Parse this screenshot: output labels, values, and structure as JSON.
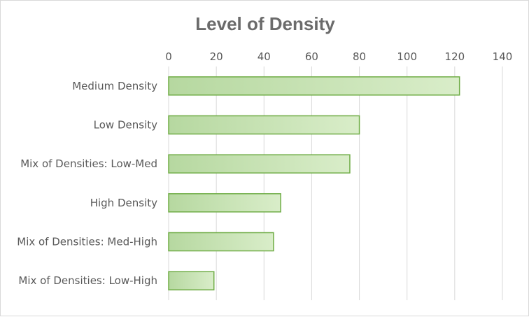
{
  "chart_data": {
    "type": "bar",
    "orientation": "horizontal",
    "title": "Level of Density",
    "xlabel": "",
    "ylabel": "",
    "categories": [
      "Medium Density",
      "Low Density",
      "Mix of Densities: Low-Med",
      "High Density",
      "Mix of Densities: Med-High",
      "Mix of Densities: Low-High"
    ],
    "values": [
      122,
      80,
      76,
      47,
      44,
      19
    ],
    "xlim": [
      0,
      140
    ],
    "xticks": [
      "0",
      "20",
      "40",
      "60",
      "80",
      "100",
      "120",
      "140"
    ],
    "x_axis_position": "top",
    "grid": true,
    "legend": false,
    "colors": {
      "bar_fill_start": "#b6d8a0",
      "bar_fill_end": "#d9edc9",
      "bar_stroke": "#70ad47",
      "grid": "#d9d9d9",
      "text": "#595959",
      "title": "#6b6b6b"
    }
  }
}
